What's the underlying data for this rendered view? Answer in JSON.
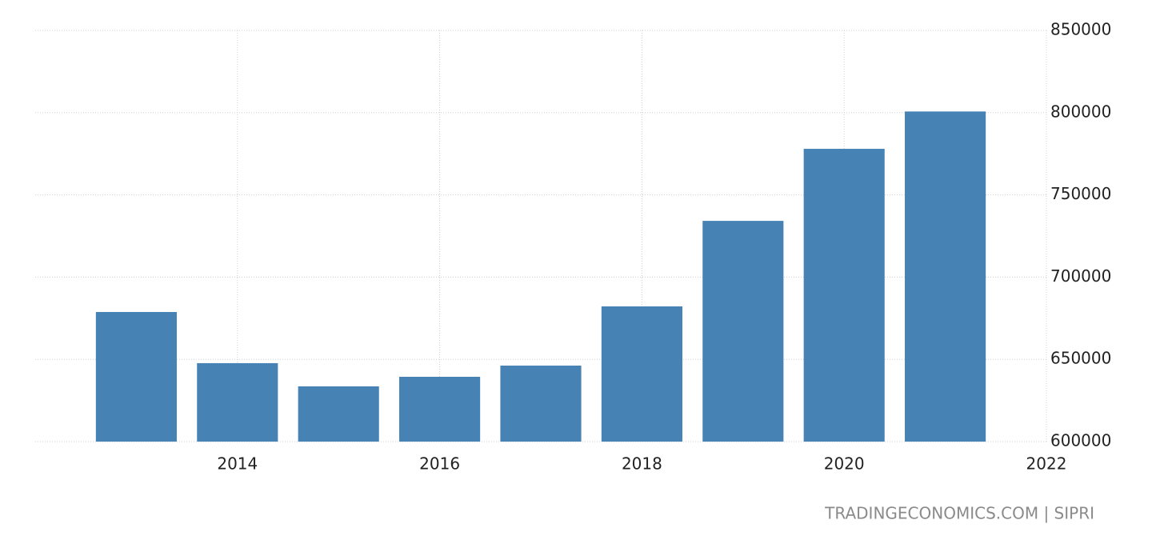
{
  "chart_data": {
    "type": "bar",
    "x": [
      2013,
      2014,
      2015,
      2016,
      2017,
      2018,
      2019,
      2020,
      2021
    ],
    "values": [
      678800,
      647700,
      633600,
      639400,
      646200,
      682200,
      734200,
      778000,
      800700
    ],
    "color": "#4682b4",
    "xlim": [
      2012,
      2022
    ],
    "xticks": [
      2014,
      2016,
      2018,
      2020,
      2022
    ],
    "ylim": [
      600000,
      850000
    ],
    "yticks": [
      600000,
      650000,
      700000,
      750000,
      800000,
      850000
    ],
    "grid": true,
    "source": "TRADINGECONOMICS.COM | SIPRI"
  }
}
